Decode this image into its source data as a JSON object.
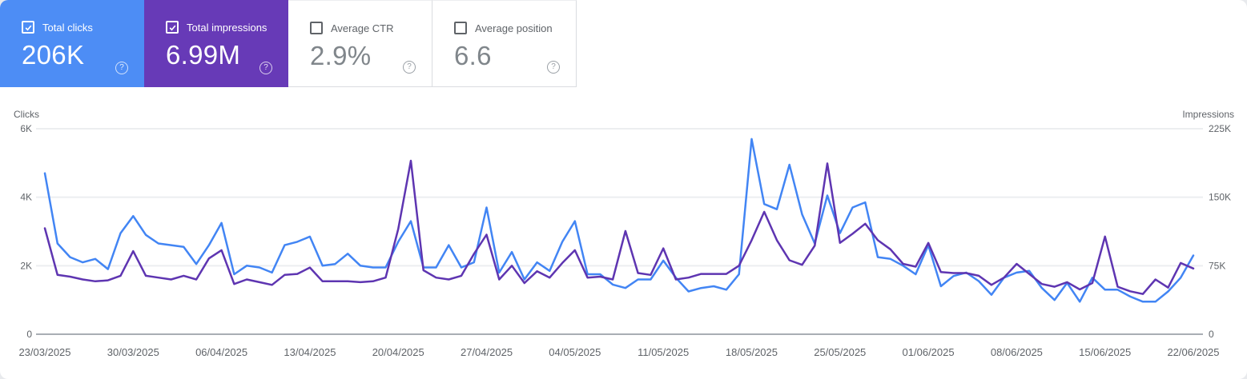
{
  "cards": [
    {
      "id": "total-clicks",
      "label": "Total clicks",
      "value": "206K",
      "checked": true,
      "bg": "#4d8df5"
    },
    {
      "id": "total-impressions",
      "label": "Total impressions",
      "value": "6.99M",
      "checked": true,
      "bg": "#673ab7"
    },
    {
      "id": "average-ctr",
      "label": "Average CTR",
      "value": "2.9%",
      "checked": false,
      "bg": ""
    },
    {
      "id": "average-position",
      "label": "Average position",
      "value": "6.6",
      "checked": false,
      "bg": ""
    }
  ],
  "help_icon_glyph": "?",
  "chart_data": {
    "type": "line",
    "interval": "daily",
    "date_range": {
      "start": "23/03/2025",
      "end": "22/06/2025",
      "points_per_series": 92
    },
    "left_axis": {
      "title": "Clicks",
      "max": 6000,
      "ticks": [
        "0",
        "2K",
        "4K",
        "6K"
      ]
    },
    "right_axis": {
      "title": "Impressions",
      "max": 225000,
      "ticks": [
        "0",
        "75K",
        "150K",
        "225K"
      ]
    },
    "x_tick_labels": [
      "23/03/2025",
      "30/03/2025",
      "06/04/2025",
      "13/04/2025",
      "20/04/2025",
      "27/04/2025",
      "04/05/2025",
      "11/05/2025",
      "18/05/2025",
      "25/05/2025",
      "01/06/2025",
      "08/06/2025",
      "15/06/2025",
      "22/06/2025"
    ],
    "x_tick_every_n_points": 7,
    "gridlines": "horizontal",
    "legend": "none",
    "series": [
      {
        "name": "Clicks",
        "axis": "left",
        "color": "#4285f4",
        "values": [
          4700,
          2650,
          2250,
          2100,
          2200,
          1900,
          2950,
          3450,
          2900,
          2650,
          2600,
          2550,
          2050,
          2600,
          3250,
          1750,
          2000,
          1950,
          1800,
          2600,
          2700,
          2850,
          2000,
          2050,
          2350,
          2000,
          1950,
          1950,
          2700,
          3300,
          1950,
          1950,
          2600,
          1950,
          2100,
          3700,
          1800,
          2400,
          1600,
          2100,
          1850,
          2700,
          3300,
          1750,
          1750,
          1450,
          1350,
          1600,
          1600,
          2150,
          1650,
          1250,
          1350,
          1400,
          1300,
          1750,
          5700,
          3800,
          3650,
          4950,
          3500,
          2650,
          4050,
          2950,
          3700,
          3850,
          2250,
          2200,
          2000,
          1750,
          2600,
          1400,
          1700,
          1800,
          1550,
          1150,
          1650,
          1800,
          1850,
          1350,
          1000,
          1500,
          950,
          1650,
          1300,
          1300,
          1100,
          950,
          950,
          1250,
          1650,
          2300
        ]
      },
      {
        "name": "Impressions",
        "axis": "right",
        "color": "#5e35b1",
        "values": [
          116000,
          65000,
          63000,
          60000,
          58000,
          59000,
          64000,
          91000,
          64000,
          62000,
          60000,
          64000,
          60000,
          83000,
          92000,
          55000,
          60000,
          57000,
          54000,
          65000,
          66000,
          73000,
          58000,
          58000,
          58000,
          57000,
          58000,
          62000,
          115000,
          190000,
          70000,
          62000,
          60000,
          64000,
          88000,
          109000,
          60000,
          75000,
          56000,
          69000,
          62000,
          78000,
          92000,
          62000,
          63000,
          60000,
          113000,
          67000,
          65000,
          94000,
          60000,
          62000,
          66000,
          66000,
          66000,
          75000,
          103000,
          134000,
          103000,
          81000,
          76000,
          97000,
          187000,
          100000,
          110000,
          121000,
          103000,
          93000,
          77000,
          74000,
          100000,
          68000,
          67000,
          67000,
          64000,
          54000,
          62000,
          77000,
          66000,
          55000,
          52000,
          57000,
          49000,
          56000,
          107000,
          52000,
          47000,
          44000,
          60000,
          51000,
          78000,
          72000
        ]
      }
    ]
  }
}
